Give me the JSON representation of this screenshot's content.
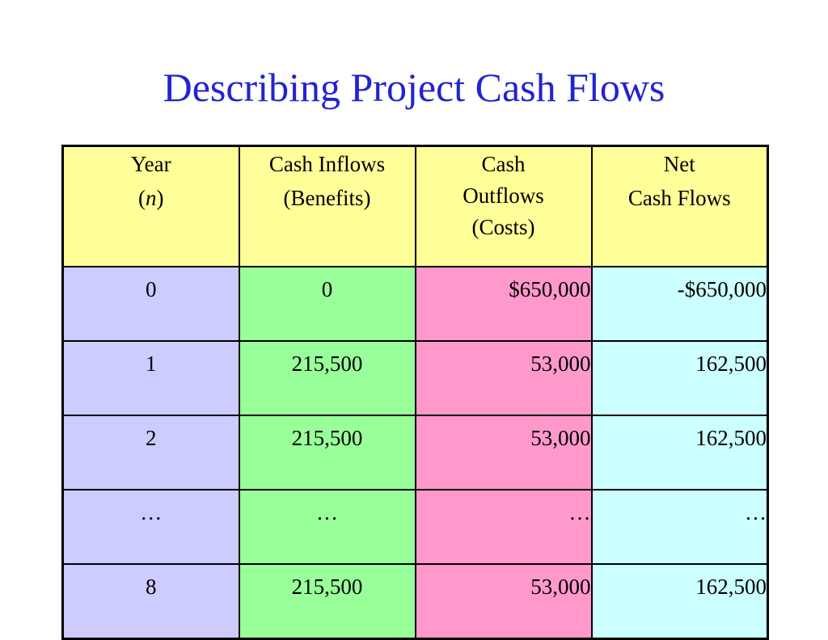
{
  "title": "Describing Project Cash Flows",
  "table": {
    "headers": {
      "year": {
        "line1": "Year",
        "paren_open": "(",
        "var": "n",
        "paren_close": ")"
      },
      "inflows": {
        "line1": "Cash Inflows",
        "line2": "(Benefits)"
      },
      "outflows": {
        "line1": "Cash",
        "line2": "Outflows",
        "line3": "(Costs)"
      },
      "net": {
        "line1": "Net",
        "line2": "Cash Flows"
      }
    },
    "rows": [
      {
        "year": "0",
        "inflows": "0",
        "outflows": "$650,000",
        "net": "-$650,000"
      },
      {
        "year": "1",
        "inflows": "215,500",
        "outflows": "53,000",
        "net": "162,500"
      },
      {
        "year": "2",
        "inflows": "215,500",
        "outflows": "53,000",
        "net": "162,500"
      },
      {
        "year": "…",
        "inflows": "…",
        "outflows": "…",
        "net": "…"
      },
      {
        "year": "8",
        "inflows": "215,500",
        "outflows": "53,000",
        "net": "162,500"
      }
    ]
  },
  "colors": {
    "title": "#2323d2",
    "header_bg": "#ffff99",
    "year_bg": "#ccccff",
    "inflows_bg": "#99ff99",
    "outflows_bg": "#ff99cc",
    "net_bg": "#ccffff"
  }
}
